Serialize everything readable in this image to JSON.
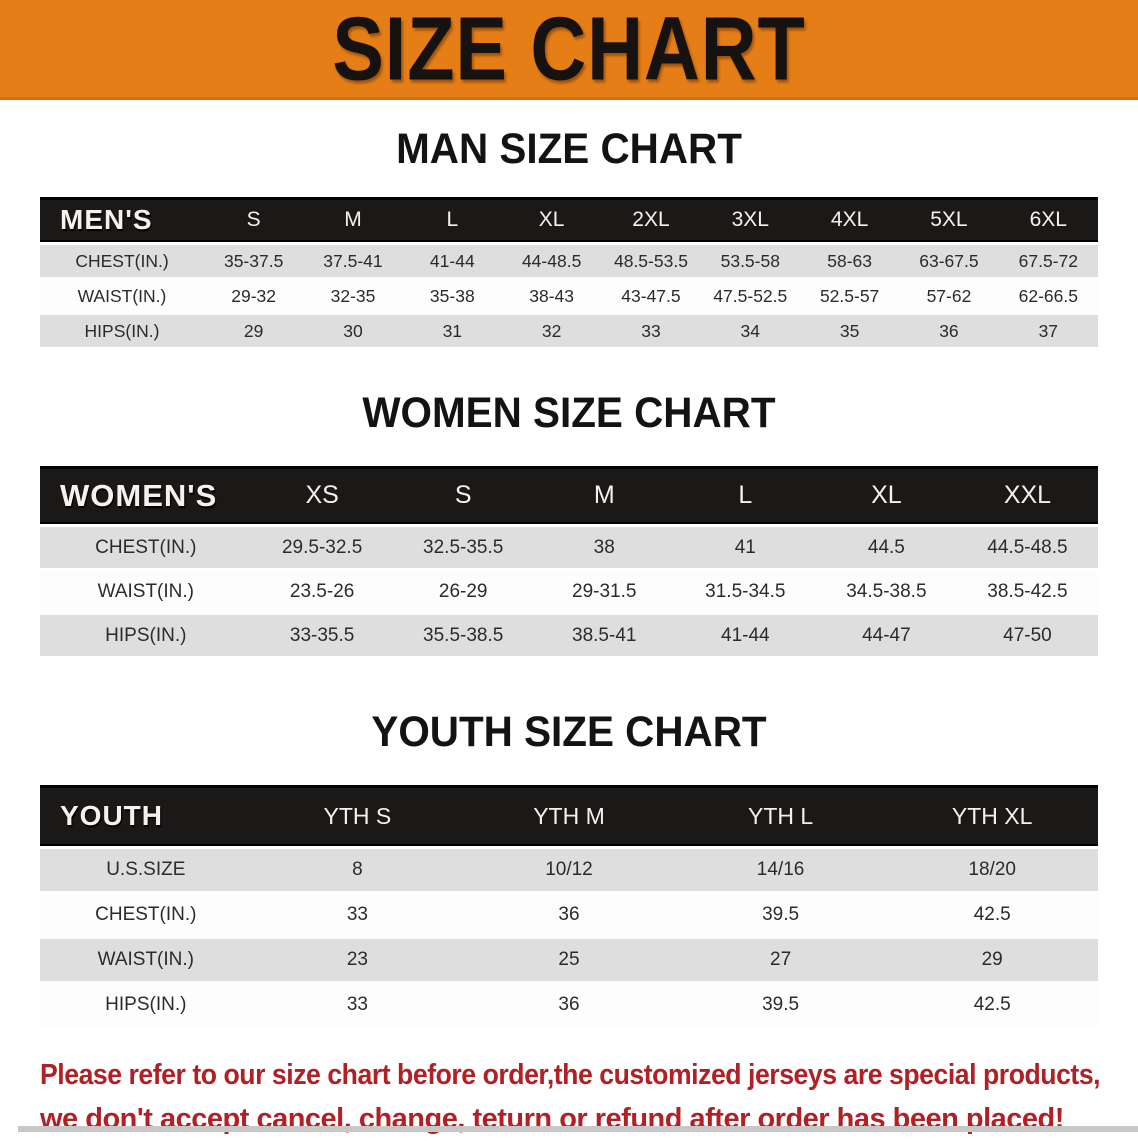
{
  "banner": {
    "title": "SIZE CHART",
    "bg_color": "#E67E17",
    "text_color": "#151210"
  },
  "sections": {
    "men": {
      "title": "MAN SIZE CHART",
      "table": {
        "label": "MEN'S",
        "columns": [
          "S",
          "M",
          "L",
          "XL",
          "2XL",
          "3XL",
          "4XL",
          "5XL",
          "6XL"
        ],
        "rows": [
          {
            "label": "CHEST(IN.)",
            "values": [
              "35-37.5",
              "37.5-41",
              "41-44",
              "44-48.5",
              "48.5-53.5",
              "53.5-58",
              "58-63",
              "63-67.5",
              "67.5-72"
            ]
          },
          {
            "label": "WAIST(IN.)",
            "values": [
              "29-32",
              "32-35",
              "35-38",
              "38-43",
              "43-47.5",
              "47.5-52.5",
              "52.5-57",
              "57-62",
              "62-66.5"
            ]
          },
          {
            "label": "HIPS(IN.)",
            "values": [
              "29",
              "30",
              "31",
              "32",
              "33",
              "34",
              "35",
              "36",
              "37"
            ]
          }
        ]
      }
    },
    "women": {
      "title": "WOMEN SIZE CHART",
      "table": {
        "label": "WOMEN'S",
        "columns": [
          "XS",
          "S",
          "M",
          "L",
          "XL",
          "XXL"
        ],
        "rows": [
          {
            "label": "CHEST(IN.)",
            "values": [
              "29.5-32.5",
              "32.5-35.5",
              "38",
              "41",
              "44.5",
              "44.5-48.5"
            ]
          },
          {
            "label": "WAIST(IN.)",
            "values": [
              "23.5-26",
              "26-29",
              "29-31.5",
              "31.5-34.5",
              "34.5-38.5",
              "38.5-42.5"
            ]
          },
          {
            "label": "HIPS(IN.)",
            "values": [
              "33-35.5",
              "35.5-38.5",
              "38.5-41",
              "41-44",
              "44-47",
              "47-50"
            ]
          }
        ]
      }
    },
    "youth": {
      "title": "YOUTH SIZE CHART",
      "table": {
        "label": "YOUTH",
        "columns": [
          "YTH S",
          "YTH M",
          "YTH L",
          "YTH XL"
        ],
        "rows": [
          {
            "label": "U.S.SIZE",
            "values": [
              "8",
              "10/12",
              "14/16",
              "18/20"
            ]
          },
          {
            "label": "CHEST(IN.)",
            "values": [
              "33",
              "36",
              "39.5",
              "42.5"
            ]
          },
          {
            "label": "WAIST(IN.)",
            "values": [
              "23",
              "25",
              "27",
              "29"
            ]
          },
          {
            "label": "HIPS(IN.)",
            "values": [
              "33",
              "36",
              "39.5",
              "42.5"
            ]
          }
        ]
      }
    }
  },
  "disclaimer": {
    "line1": "Please refer to our size chart before order,the customized jerseys are special products,",
    "line2": "we don't accept cancel, change, teturn or refund after order has been placed!",
    "color": "#B02025"
  }
}
